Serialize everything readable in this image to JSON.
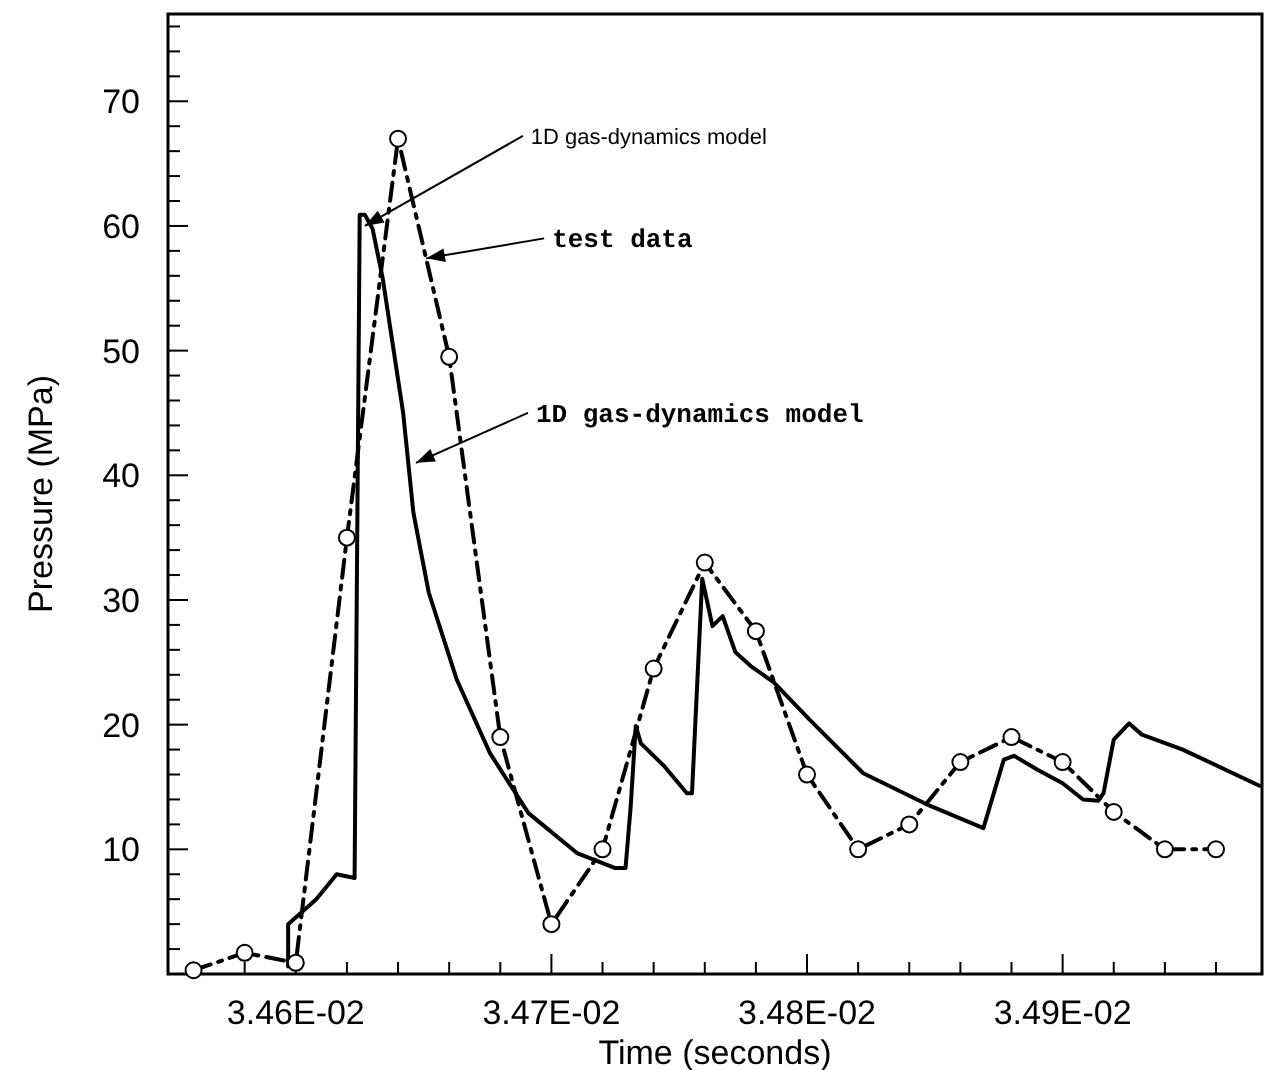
{
  "chart_data": {
    "type": "line",
    "xlabel": "Time (seconds)",
    "ylabel": "Pressure (MPa)",
    "xlim": [
      0.03455,
      0.034978
    ],
    "ylim": [
      0,
      77
    ],
    "xticks": [
      {
        "value": 0.03456,
        "label": null
      },
      {
        "value": 0.03458,
        "label": null
      },
      {
        "value": 0.0346,
        "label": "3.46E-02"
      },
      {
        "value": 0.03462,
        "label": null
      },
      {
        "value": 0.03464,
        "label": null
      },
      {
        "value": 0.03466,
        "label": null
      },
      {
        "value": 0.03468,
        "label": null
      },
      {
        "value": 0.0347,
        "label": "3.47E-02"
      },
      {
        "value": 0.03472,
        "label": null
      },
      {
        "value": 0.03474,
        "label": null
      },
      {
        "value": 0.03476,
        "label": null
      },
      {
        "value": 0.03478,
        "label": null
      },
      {
        "value": 0.0348,
        "label": "3.48E-02"
      },
      {
        "value": 0.03482,
        "label": null
      },
      {
        "value": 0.03484,
        "label": null
      },
      {
        "value": 0.03486,
        "label": null
      },
      {
        "value": 0.03488,
        "label": null
      },
      {
        "value": 0.0349,
        "label": "3.49E-02"
      },
      {
        "value": 0.03492,
        "label": null
      },
      {
        "value": 0.03494,
        "label": null
      },
      {
        "value": 0.03496,
        "label": null
      }
    ],
    "yticks": [
      {
        "value": 2,
        "label": null
      },
      {
        "value": 4,
        "label": null
      },
      {
        "value": 6,
        "label": null
      },
      {
        "value": 8,
        "label": null
      },
      10,
      {
        "value": 12,
        "label": null
      },
      {
        "value": 14,
        "label": null
      },
      {
        "value": 16,
        "label": null
      },
      {
        "value": 18,
        "label": null
      },
      20,
      {
        "value": 22,
        "label": null
      },
      {
        "value": 24,
        "label": null
      },
      {
        "value": 26,
        "label": null
      },
      {
        "value": 28,
        "label": null
      },
      30,
      {
        "value": 32,
        "label": null
      },
      {
        "value": 34,
        "label": null
      },
      {
        "value": 36,
        "label": null
      },
      {
        "value": 38,
        "label": null
      },
      40,
      {
        "value": 42,
        "label": null
      },
      {
        "value": 44,
        "label": null
      },
      {
        "value": 46,
        "label": null
      },
      {
        "value": 48,
        "label": null
      },
      50,
      {
        "value": 52,
        "label": null
      },
      {
        "value": 54,
        "label": null
      },
      {
        "value": 56,
        "label": null
      },
      {
        "value": 58,
        "label": null
      },
      60,
      {
        "value": 62,
        "label": null
      },
      {
        "value": 64,
        "label": null
      },
      {
        "value": 66,
        "label": null
      },
      {
        "value": 68,
        "label": null
      },
      70,
      {
        "value": 72,
        "label": null
      },
      {
        "value": 74,
        "label": null
      },
      {
        "value": 76,
        "label": null
      }
    ],
    "grid": false,
    "series": [
      {
        "color": "#000000",
        "line_style": "solid",
        "marker": "none",
        "x": [
          0.034597,
          0.034597,
          0.034608,
          0.034616,
          0.034623,
          0.034625,
          0.034627,
          0.03463,
          0.034634,
          0.034638,
          0.034642,
          0.034646,
          0.034652,
          0.034663,
          0.034676,
          0.034691,
          0.03471,
          0.034725,
          0.034729,
          0.034731,
          0.034733,
          0.034735,
          0.034744,
          0.034753,
          0.034755,
          0.034759,
          0.034763,
          0.034767,
          0.034772,
          0.034778,
          0.034787,
          0.034801,
          0.034822,
          0.034848,
          0.034869,
          0.034877,
          0.034881,
          0.03489,
          0.0349,
          0.034908,
          0.034914,
          0.034916,
          0.03492,
          0.034926,
          0.034931,
          0.034947,
          0.034977
        ],
        "values": [
          0.6,
          4,
          6,
          8,
          7.7,
          60.9,
          60.9,
          59.8,
          55.8,
          50.4,
          45,
          37,
          30.6,
          23.6,
          17.7,
          12.9,
          9.7,
          8.5,
          8.5,
          13.4,
          19.9,
          18.5,
          16.7,
          14.5,
          14.5,
          31.7,
          27.9,
          28.7,
          25.8,
          24.7,
          23.4,
          20.4,
          16.1,
          13.5,
          11.7,
          17.2,
          17.5,
          16.4,
          15.3,
          14,
          13.9,
          14.5,
          18.8,
          20.1,
          19.2,
          18,
          15.1
        ]
      },
      {
        "color": "#000000",
        "line_style": "dashdot",
        "marker": "circle",
        "x": [
          0.03456,
          0.03458,
          0.0346,
          0.03462,
          0.03464,
          0.03466,
          0.03468,
          0.0347,
          0.03472,
          0.03474,
          0.03476,
          0.03478,
          0.0348,
          0.03482,
          0.03484,
          0.03486,
          0.03488,
          0.0349,
          0.03492,
          0.03494,
          0.03496
        ],
        "values": [
          0.3,
          1.7,
          0.9,
          35,
          67,
          49.5,
          19,
          4,
          10,
          24.5,
          33,
          27.5,
          16,
          10,
          12,
          17,
          19,
          17,
          13,
          10,
          10
        ]
      }
    ],
    "annotations": [
      {
        "text": "1D gas-dynamics model",
        "x": 0.034627,
        "y": 60
      },
      {
        "text": "test data",
        "x": 0.034651,
        "y": 57.4
      },
      {
        "text": "1D gas-dynamics model",
        "x": 0.034647,
        "y": 41
      }
    ]
  }
}
